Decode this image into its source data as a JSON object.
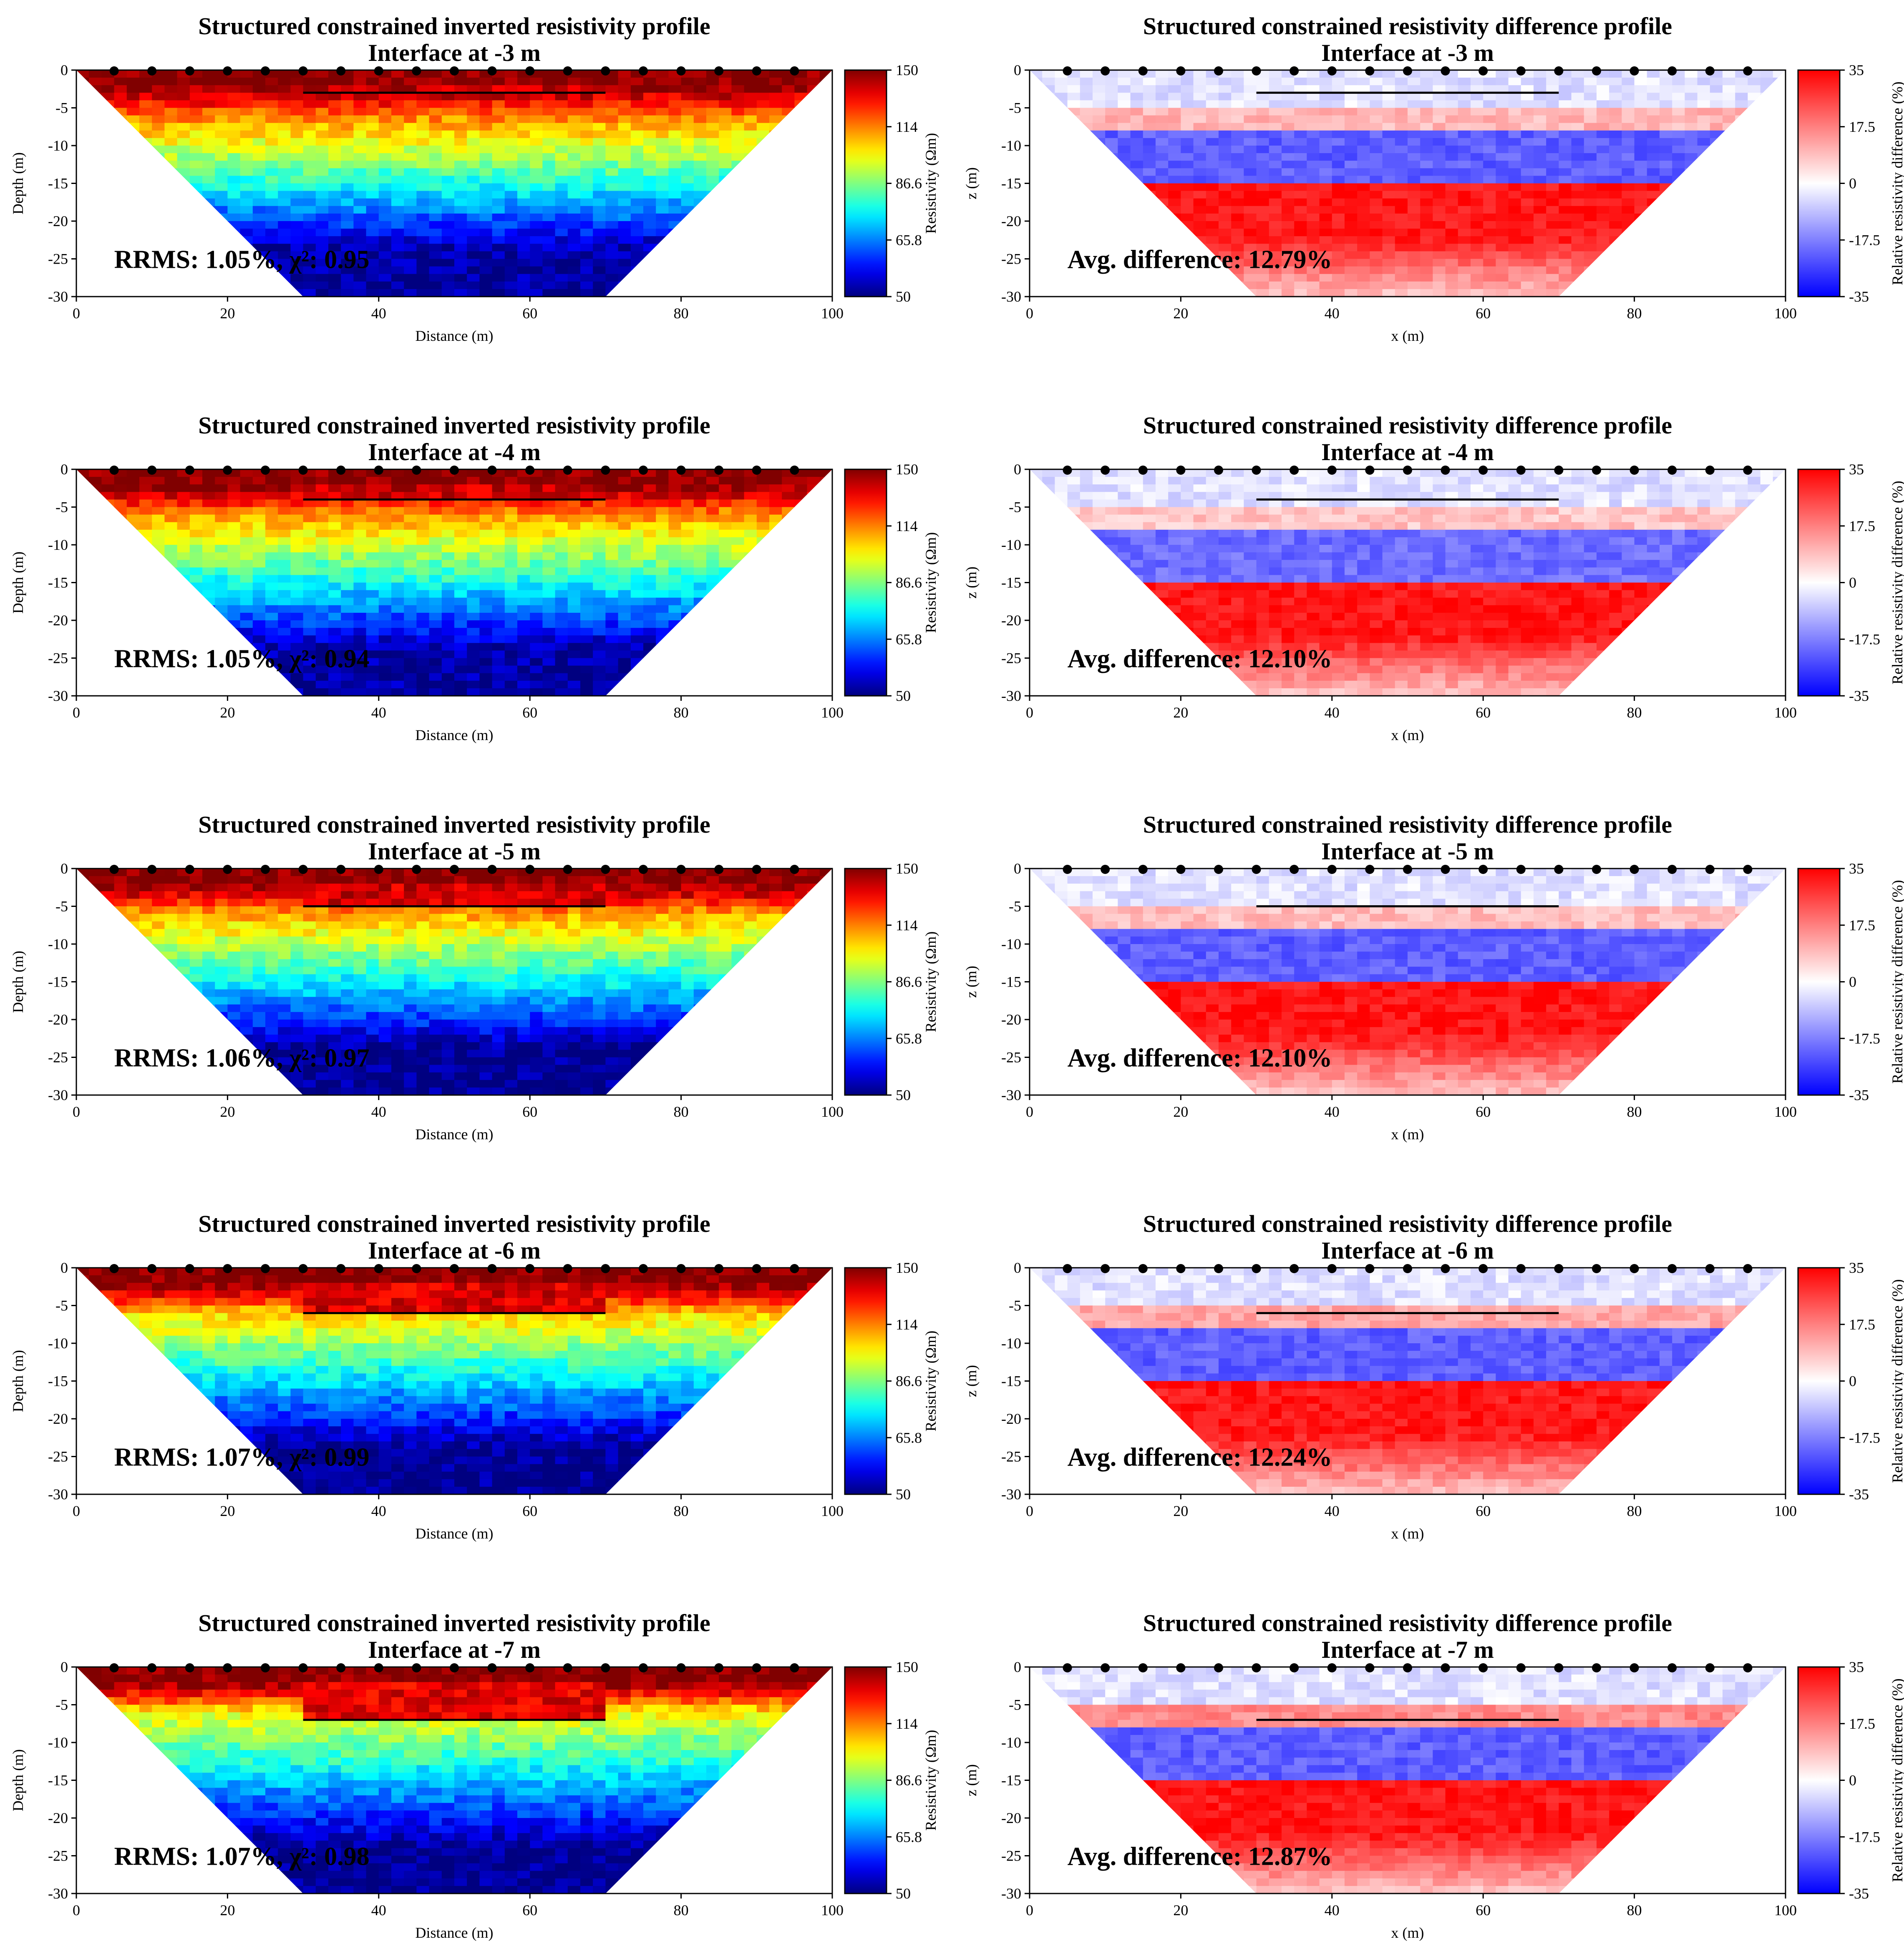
{
  "chart_data": [
    {
      "type": "heatmap",
      "panel": "resistivity",
      "title": [
        "Structured constrained inverted resistivity profile",
        "Interface at -3 m"
      ],
      "xlabel": "Distance (m)",
      "ylabel": "Depth (m)",
      "xlim": [
        0,
        100
      ],
      "ylim": [
        -30,
        0
      ],
      "xticks": [
        "0",
        "20",
        "40",
        "60",
        "80",
        "100"
      ],
      "yticks": [
        "0",
        "-5",
        "-10",
        "-15",
        "-20",
        "-25",
        "-30"
      ],
      "colorbar": {
        "label": "Resistivity (Ωm)",
        "ticks": [
          "150",
          "114",
          "86.6",
          "65.8",
          "50"
        ],
        "range": [
          50,
          150
        ],
        "colormap": "jet",
        "scale": "log"
      },
      "interface_depth": -3,
      "interface_x": [
        30,
        70
      ],
      "electrodes_x": [
        5,
        10,
        15,
        20,
        25,
        30,
        35,
        40,
        45,
        50,
        55,
        60,
        65,
        70,
        75,
        80,
        85,
        90,
        95
      ],
      "annotation": "RRMS: 1.05%, χ²: 0.95",
      "layer_resistivity": {
        "top": 150,
        "middle": 115,
        "bottom": 52
      }
    },
    {
      "type": "heatmap",
      "panel": "difference",
      "title": [
        "Structured constrained resistivity difference profile",
        "Interface at -3 m"
      ],
      "xlabel": "x (m)",
      "ylabel": "z (m)",
      "xlim": [
        0,
        100
      ],
      "ylim": [
        -30,
        0
      ],
      "xticks": [
        "0",
        "20",
        "40",
        "60",
        "80",
        "100"
      ],
      "yticks": [
        "0",
        "-5",
        "-10",
        "-15",
        "-20",
        "-25",
        "-30"
      ],
      "colorbar": {
        "label": "Relative resistivity difference (%)",
        "ticks": [
          "35",
          "17.5",
          "0",
          "-17.5",
          "-35"
        ],
        "range": [
          -35,
          35
        ],
        "colormap": "bwr"
      },
      "interface_depth": -3,
      "interface_x": [
        30,
        70
      ],
      "electrodes_x": [
        5,
        10,
        15,
        20,
        25,
        30,
        35,
        40,
        45,
        50,
        55,
        60,
        65,
        70,
        75,
        80,
        85,
        90,
        95
      ],
      "annotation": "Avg. difference: 12.79%",
      "difference_bands": [
        {
          "from": 0,
          "to": -5,
          "value": -4
        },
        {
          "from": -5,
          "to": -8,
          "value": 10
        },
        {
          "from": -8,
          "to": -15,
          "value": -22
        },
        {
          "from": -15,
          "to": -30,
          "value": 32
        }
      ]
    },
    {
      "type": "heatmap",
      "panel": "resistivity",
      "title": [
        "Structured constrained inverted resistivity profile",
        "Interface at -4 m"
      ],
      "xlabel": "Distance (m)",
      "ylabel": "Depth (m)",
      "xlim": [
        0,
        100
      ],
      "ylim": [
        -30,
        0
      ],
      "xticks": [
        "0",
        "20",
        "40",
        "60",
        "80",
        "100"
      ],
      "yticks": [
        "0",
        "-5",
        "-10",
        "-15",
        "-20",
        "-25",
        "-30"
      ],
      "colorbar": {
        "label": "Resistivity (Ωm)",
        "ticks": [
          "150",
          "114",
          "86.6",
          "65.8",
          "50"
        ],
        "range": [
          50,
          150
        ],
        "colormap": "jet",
        "scale": "log"
      },
      "interface_depth": -4,
      "interface_x": [
        30,
        70
      ],
      "electrodes_x": [
        5,
        10,
        15,
        20,
        25,
        30,
        35,
        40,
        45,
        50,
        55,
        60,
        65,
        70,
        75,
        80,
        85,
        90,
        95
      ],
      "annotation": "RRMS: 1.05%, χ²: 0.94",
      "layer_resistivity": {
        "top": 150,
        "middle": 112,
        "bottom": 52
      }
    },
    {
      "type": "heatmap",
      "panel": "difference",
      "title": [
        "Structured constrained resistivity difference profile",
        "Interface at -4 m"
      ],
      "xlabel": "x (m)",
      "ylabel": "z (m)",
      "xlim": [
        0,
        100
      ],
      "ylim": [
        -30,
        0
      ],
      "xticks": [
        "0",
        "20",
        "40",
        "60",
        "80",
        "100"
      ],
      "yticks": [
        "0",
        "-5",
        "-10",
        "-15",
        "-20",
        "-25",
        "-30"
      ],
      "colorbar": {
        "label": "Relative resistivity difference (%)",
        "ticks": [
          "35",
          "17.5",
          "0",
          "-17.5",
          "-35"
        ],
        "range": [
          -35,
          35
        ],
        "colormap": "bwr"
      },
      "interface_depth": -4,
      "interface_x": [
        30,
        70
      ],
      "electrodes_x": [
        5,
        10,
        15,
        20,
        25,
        30,
        35,
        40,
        45,
        50,
        55,
        60,
        65,
        70,
        75,
        80,
        85,
        90,
        95
      ],
      "annotation": "Avg. difference: 12.10%",
      "difference_bands": [
        {
          "from": 0,
          "to": -5,
          "value": -4
        },
        {
          "from": -5,
          "to": -8,
          "value": 8
        },
        {
          "from": -8,
          "to": -15,
          "value": -20
        },
        {
          "from": -15,
          "to": -30,
          "value": 32
        }
      ]
    },
    {
      "type": "heatmap",
      "panel": "resistivity",
      "title": [
        "Structured constrained inverted resistivity profile",
        "Interface at -5 m"
      ],
      "xlabel": "Distance (m)",
      "ylabel": "Depth (m)",
      "xlim": [
        0,
        100
      ],
      "ylim": [
        -30,
        0
      ],
      "xticks": [
        "0",
        "20",
        "40",
        "60",
        "80",
        "100"
      ],
      "yticks": [
        "0",
        "-5",
        "-10",
        "-15",
        "-20",
        "-25",
        "-30"
      ],
      "colorbar": {
        "label": "Resistivity (Ωm)",
        "ticks": [
          "150",
          "114",
          "86.6",
          "65.8",
          "50"
        ],
        "range": [
          50,
          150
        ],
        "colormap": "jet",
        "scale": "log"
      },
      "interface_depth": -5,
      "interface_x": [
        30,
        70
      ],
      "electrodes_x": [
        5,
        10,
        15,
        20,
        25,
        30,
        35,
        40,
        45,
        50,
        55,
        60,
        65,
        70,
        75,
        80,
        85,
        90,
        95
      ],
      "annotation": "RRMS: 1.06%, χ²: 0.97",
      "layer_resistivity": {
        "top": 150,
        "middle": 110,
        "bottom": 51
      }
    },
    {
      "type": "heatmap",
      "panel": "difference",
      "title": [
        "Structured constrained resistivity difference profile",
        "Interface at -5 m"
      ],
      "xlabel": "x (m)",
      "ylabel": "z (m)",
      "xlim": [
        0,
        100
      ],
      "ylim": [
        -30,
        0
      ],
      "xticks": [
        "0",
        "20",
        "40",
        "60",
        "80",
        "100"
      ],
      "yticks": [
        "0",
        "-5",
        "-10",
        "-15",
        "-20",
        "-25",
        "-30"
      ],
      "colorbar": {
        "label": "Relative resistivity difference (%)",
        "ticks": [
          "35",
          "17.5",
          "0",
          "-17.5",
          "-35"
        ],
        "range": [
          -35,
          35
        ],
        "colormap": "bwr"
      },
      "interface_depth": -5,
      "interface_x": [
        30,
        70
      ],
      "electrodes_x": [
        5,
        10,
        15,
        20,
        25,
        30,
        35,
        40,
        45,
        50,
        55,
        60,
        65,
        70,
        75,
        80,
        85,
        90,
        95
      ],
      "annotation": "Avg. difference: 12.10%",
      "difference_bands": [
        {
          "from": 0,
          "to": -5,
          "value": -4
        },
        {
          "from": -5,
          "to": -8,
          "value": 9
        },
        {
          "from": -8,
          "to": -15,
          "value": -22
        },
        {
          "from": -15,
          "to": -30,
          "value": 32
        }
      ]
    },
    {
      "type": "heatmap",
      "panel": "resistivity",
      "title": [
        "Structured constrained inverted resistivity profile",
        "Interface at -6 m"
      ],
      "xlabel": "Distance (m)",
      "ylabel": "Depth (m)",
      "xlim": [
        0,
        100
      ],
      "ylim": [
        -30,
        0
      ],
      "xticks": [
        "0",
        "20",
        "40",
        "60",
        "80",
        "100"
      ],
      "yticks": [
        "0",
        "-5",
        "-10",
        "-15",
        "-20",
        "-25",
        "-30"
      ],
      "colorbar": {
        "label": "Resistivity (Ωm)",
        "ticks": [
          "150",
          "114",
          "86.6",
          "65.8",
          "50"
        ],
        "range": [
          50,
          150
        ],
        "colormap": "jet",
        "scale": "log"
      },
      "interface_depth": -6,
      "interface_x": [
        30,
        70
      ],
      "electrodes_x": [
        5,
        10,
        15,
        20,
        25,
        30,
        35,
        40,
        45,
        50,
        55,
        60,
        65,
        70,
        75,
        80,
        85,
        90,
        95
      ],
      "annotation": "RRMS: 1.07%, χ²: 0.99",
      "layer_resistivity": {
        "top": 150,
        "middle": 105,
        "bottom": 51
      }
    },
    {
      "type": "heatmap",
      "panel": "difference",
      "title": [
        "Structured constrained resistivity difference profile",
        "Interface at -6 m"
      ],
      "xlabel": "x (m)",
      "ylabel": "z (m)",
      "xlim": [
        0,
        100
      ],
      "ylim": [
        -30,
        0
      ],
      "xticks": [
        "0",
        "20",
        "40",
        "60",
        "80",
        "100"
      ],
      "yticks": [
        "0",
        "-5",
        "-10",
        "-15",
        "-20",
        "-25",
        "-30"
      ],
      "colorbar": {
        "label": "Relative resistivity difference (%)",
        "ticks": [
          "35",
          "17.5",
          "0",
          "-17.5",
          "-35"
        ],
        "range": [
          -35,
          35
        ],
        "colormap": "bwr"
      },
      "interface_depth": -6,
      "interface_x": [
        30,
        70
      ],
      "electrodes_x": [
        5,
        10,
        15,
        20,
        25,
        30,
        35,
        40,
        45,
        50,
        55,
        60,
        65,
        70,
        75,
        80,
        85,
        90,
        95
      ],
      "annotation": "Avg. difference: 12.24%",
      "difference_bands": [
        {
          "from": 0,
          "to": -5,
          "value": -4
        },
        {
          "from": -5,
          "to": -8,
          "value": 12
        },
        {
          "from": -8,
          "to": -15,
          "value": -22
        },
        {
          "from": -15,
          "to": -30,
          "value": 32
        }
      ]
    },
    {
      "type": "heatmap",
      "panel": "resistivity",
      "title": [
        "Structured constrained inverted resistivity profile",
        "Interface at -7 m"
      ],
      "xlabel": "Distance (m)",
      "ylabel": "Depth (m)",
      "xlim": [
        0,
        100
      ],
      "ylim": [
        -30,
        0
      ],
      "xticks": [
        "0",
        "20",
        "40",
        "60",
        "80",
        "100"
      ],
      "yticks": [
        "0",
        "-5",
        "-10",
        "-15",
        "-20",
        "-25",
        "-30"
      ],
      "colorbar": {
        "label": "Resistivity (Ωm)",
        "ticks": [
          "150",
          "114",
          "86.6",
          "65.8",
          "50"
        ],
        "range": [
          50,
          150
        ],
        "colormap": "jet",
        "scale": "log"
      },
      "interface_depth": -7,
      "interface_x": [
        30,
        70
      ],
      "electrodes_x": [
        5,
        10,
        15,
        20,
        25,
        30,
        35,
        40,
        45,
        50,
        55,
        60,
        65,
        70,
        75,
        80,
        85,
        90,
        95
      ],
      "annotation": "RRMS: 1.07%, χ²: 0.98",
      "layer_resistivity": {
        "top": 150,
        "middle": 100,
        "bottom": 51
      }
    },
    {
      "type": "heatmap",
      "panel": "difference",
      "title": [
        "Structured constrained resistivity difference profile",
        "Interface at -7 m"
      ],
      "xlabel": "x (m)",
      "ylabel": "z (m)",
      "xlim": [
        0,
        100
      ],
      "ylim": [
        -30,
        0
      ],
      "xticks": [
        "0",
        "20",
        "40",
        "60",
        "80",
        "100"
      ],
      "yticks": [
        "0",
        "-5",
        "-10",
        "-15",
        "-20",
        "-25",
        "-30"
      ],
      "colorbar": {
        "label": "Relative resistivity difference (%)",
        "ticks": [
          "35",
          "17.5",
          "0",
          "-17.5",
          "-35"
        ],
        "range": [
          -35,
          35
        ],
        "colormap": "bwr"
      },
      "interface_depth": -7,
      "interface_x": [
        30,
        70
      ],
      "electrodes_x": [
        5,
        10,
        15,
        20,
        25,
        30,
        35,
        40,
        45,
        50,
        55,
        60,
        65,
        70,
        75,
        80,
        85,
        90,
        95
      ],
      "annotation": "Avg. difference: 12.87%",
      "difference_bands": [
        {
          "from": 0,
          "to": -5,
          "value": -4
        },
        {
          "from": -5,
          "to": -8,
          "value": 16
        },
        {
          "from": -8,
          "to": -15,
          "value": -22
        },
        {
          "from": -15,
          "to": -30,
          "value": 32
        }
      ]
    }
  ]
}
